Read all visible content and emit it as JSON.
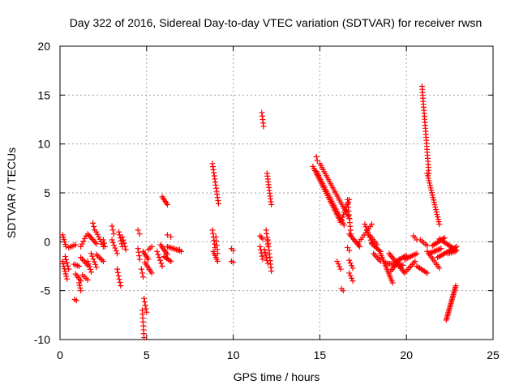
{
  "chart_data": {
    "type": "scatter",
    "title": "Day 322 of 2016, Sidereal Day-to-day VTEC variation (SDTVAR) for receiver rwsn",
    "xlabel": "GPS time / hours",
    "ylabel": "SDTVAR / TECUs",
    "xlim": [
      0,
      25
    ],
    "ylim": [
      -10,
      20
    ],
    "x_ticks": [
      0,
      5,
      10,
      15,
      20,
      25
    ],
    "x_tick_labels": [
      "0",
      "5",
      "10",
      "15",
      "20",
      "25"
    ],
    "y_ticks": [
      -10,
      -5,
      0,
      5,
      10,
      15,
      20
    ],
    "y_tick_labels": [
      "-10",
      "-5",
      "0",
      "5",
      "10",
      "15",
      "20"
    ],
    "grid": true,
    "marker": "plus",
    "color": "#ff0000",
    "segments": [
      {
        "x0": 0.15,
        "y0": 0.7,
        "x1": 0.35,
        "y1": -0.5,
        "n": 6
      },
      {
        "x0": 0.15,
        "y0": -2.0,
        "x1": 0.4,
        "y1": -3.8,
        "n": 8
      },
      {
        "x0": 0.3,
        "y0": -1.5,
        "x1": 0.5,
        "y1": -2.8,
        "n": 5
      },
      {
        "x0": 0.5,
        "y0": -0.6,
        "x1": 0.9,
        "y1": -0.3,
        "n": 5
      },
      {
        "x0": 0.8,
        "y0": -2.3,
        "x1": 1.1,
        "y1": -2.5,
        "n": 4
      },
      {
        "x0": 0.85,
        "y0": -5.9,
        "x1": 0.95,
        "y1": -6.0,
        "n": 2
      },
      {
        "x0": 0.9,
        "y0": -3.3,
        "x1": 1.2,
        "y1": -4.0,
        "n": 5
      },
      {
        "x0": 1.1,
        "y0": -4.2,
        "x1": 1.2,
        "y1": -5.0,
        "n": 4
      },
      {
        "x0": 1.2,
        "y0": -0.5,
        "x1": 1.5,
        "y1": 0.6,
        "n": 5
      },
      {
        "x0": 1.2,
        "y0": -1.6,
        "x1": 1.6,
        "y1": -2.4,
        "n": 6
      },
      {
        "x0": 1.3,
        "y0": -3.4,
        "x1": 1.6,
        "y1": -3.9,
        "n": 4
      },
      {
        "x0": 1.6,
        "y0": 0.8,
        "x1": 2.1,
        "y1": -0.2,
        "n": 8
      },
      {
        "x0": 1.6,
        "y0": -2.0,
        "x1": 1.8,
        "y1": -3.1,
        "n": 5
      },
      {
        "x0": 1.8,
        "y0": -1.2,
        "x1": 2.1,
        "y1": -2.6,
        "n": 6
      },
      {
        "x0": 1.9,
        "y0": 1.9,
        "x1": 2.0,
        "y1": 1.2,
        "n": 3
      },
      {
        "x0": 2.1,
        "y0": 1.0,
        "x1": 2.5,
        "y1": -0.5,
        "n": 7
      },
      {
        "x0": 2.1,
        "y0": -1.3,
        "x1": 2.5,
        "y1": -2.0,
        "n": 6
      },
      {
        "x0": 2.5,
        "y0": 0.2,
        "x1": 2.6,
        "y1": -0.5,
        "n": 3
      },
      {
        "x0": 3.0,
        "y0": 1.6,
        "x1": 3.1,
        "y1": 0.8,
        "n": 3
      },
      {
        "x0": 3.0,
        "y0": 0.2,
        "x1": 3.3,
        "y1": -1.2,
        "n": 6
      },
      {
        "x0": 3.3,
        "y0": -2.8,
        "x1": 3.5,
        "y1": -4.5,
        "n": 6
      },
      {
        "x0": 3.4,
        "y0": 1.0,
        "x1": 3.6,
        "y1": -0.5,
        "n": 6
      },
      {
        "x0": 3.6,
        "y0": 0.5,
        "x1": 3.8,
        "y1": -0.8,
        "n": 5
      },
      {
        "x0": 4.5,
        "y0": 1.2,
        "x1": 4.6,
        "y1": 0.8,
        "n": 2
      },
      {
        "x0": 4.5,
        "y0": -0.7,
        "x1": 4.6,
        "y1": -1.8,
        "n": 4
      },
      {
        "x0": 4.7,
        "y0": -2.8,
        "x1": 4.8,
        "y1": -3.6,
        "n": 3
      },
      {
        "x0": 4.75,
        "y0": -7.0,
        "x1": 4.85,
        "y1": -9.8,
        "n": 8
      },
      {
        "x0": 4.85,
        "y0": -5.8,
        "x1": 5.0,
        "y1": -7.2,
        "n": 5
      },
      {
        "x0": 4.8,
        "y0": -1.0,
        "x1": 5.1,
        "y1": -1.8,
        "n": 6
      },
      {
        "x0": 4.9,
        "y0": -2.1,
        "x1": 5.3,
        "y1": -3.2,
        "n": 7
      },
      {
        "x0": 5.1,
        "y0": -0.8,
        "x1": 5.3,
        "y1": -0.5,
        "n": 3
      },
      {
        "x0": 5.6,
        "y0": -1.0,
        "x1": 5.9,
        "y1": -2.5,
        "n": 6
      },
      {
        "x0": 5.9,
        "y0": 4.6,
        "x1": 6.2,
        "y1": 3.8,
        "n": 6
      },
      {
        "x0": 5.8,
        "y0": -0.3,
        "x1": 6.2,
        "y1": -1.3,
        "n": 7
      },
      {
        "x0": 6.0,
        "y0": -1.5,
        "x1": 6.4,
        "y1": -2.0,
        "n": 6
      },
      {
        "x0": 6.2,
        "y0": 0.7,
        "x1": 6.4,
        "y1": 0.5,
        "n": 2
      },
      {
        "x0": 6.2,
        "y0": -0.5,
        "x1": 6.9,
        "y1": -0.9,
        "n": 9
      },
      {
        "x0": 6.9,
        "y0": -0.8,
        "x1": 7.0,
        "y1": -1.0,
        "n": 2
      },
      {
        "x0": 8.8,
        "y0": 8.0,
        "x1": 9.15,
        "y1": 3.9,
        "n": 14
      },
      {
        "x0": 8.8,
        "y0": 1.2,
        "x1": 8.95,
        "y1": -0.6,
        "n": 6
      },
      {
        "x0": 8.85,
        "y0": -1.0,
        "x1": 9.1,
        "y1": -2.0,
        "n": 6
      },
      {
        "x0": 9.0,
        "y0": 0.5,
        "x1": 9.1,
        "y1": -1.2,
        "n": 5
      },
      {
        "x0": 9.9,
        "y0": -0.7,
        "x1": 10.0,
        "y1": -0.9,
        "n": 2
      },
      {
        "x0": 9.9,
        "y0": -2.0,
        "x1": 10.0,
        "y1": -2.1,
        "n": 2
      },
      {
        "x0": 11.55,
        "y0": 0.6,
        "x1": 11.7,
        "y1": 0.3,
        "n": 3
      },
      {
        "x0": 11.55,
        "y0": -0.5,
        "x1": 11.7,
        "y1": -1.8,
        "n": 5
      },
      {
        "x0": 11.65,
        "y0": 13.2,
        "x1": 11.75,
        "y1": 11.8,
        "n": 5
      },
      {
        "x0": 11.8,
        "y0": -0.8,
        "x1": 12.0,
        "y1": -2.2,
        "n": 6
      },
      {
        "x0": 11.9,
        "y0": 1.2,
        "x1": 12.0,
        "y1": -0.3,
        "n": 5
      },
      {
        "x0": 11.95,
        "y0": 7.0,
        "x1": 12.2,
        "y1": 3.8,
        "n": 12
      },
      {
        "x0": 12.0,
        "y0": 0.2,
        "x1": 12.2,
        "y1": -3.0,
        "n": 10
      },
      {
        "x0": 14.8,
        "y0": 8.7,
        "x1": 14.85,
        "y1": 8.3,
        "n": 2
      },
      {
        "x0": 14.6,
        "y0": 7.7,
        "x1": 16.2,
        "y1": 2.0,
        "n": 28
      },
      {
        "x0": 14.8,
        "y0": 7.2,
        "x1": 16.4,
        "y1": 1.7,
        "n": 28
      },
      {
        "x0": 15.0,
        "y0": 8.0,
        "x1": 16.7,
        "y1": 2.4,
        "n": 28
      },
      {
        "x0": 16.2,
        "y0": 2.0,
        "x1": 16.7,
        "y1": 4.3,
        "n": 10
      },
      {
        "x0": 16.6,
        "y0": 4.3,
        "x1": 16.8,
        "y1": 0.8,
        "n": 10
      },
      {
        "x0": 16.7,
        "y0": 0.8,
        "x1": 17.3,
        "y1": -0.5,
        "n": 10
      },
      {
        "x0": 16.0,
        "y0": -2.0,
        "x1": 16.2,
        "y1": -2.8,
        "n": 4
      },
      {
        "x0": 16.25,
        "y0": -4.8,
        "x1": 16.35,
        "y1": -5.0,
        "n": 2
      },
      {
        "x0": 16.6,
        "y0": -0.6,
        "x1": 16.7,
        "y1": -0.9,
        "n": 2
      },
      {
        "x0": 16.7,
        "y0": -3.2,
        "x1": 16.9,
        "y1": -4.0,
        "n": 4
      },
      {
        "x0": 16.7,
        "y0": -1.9,
        "x1": 16.9,
        "y1": -2.7,
        "n": 4
      },
      {
        "x0": 17.2,
        "y0": -0.2,
        "x1": 18.0,
        "y1": 1.8,
        "n": 10
      },
      {
        "x0": 17.6,
        "y0": 1.8,
        "x1": 18.0,
        "y1": -0.1,
        "n": 8
      },
      {
        "x0": 18.0,
        "y0": -0.2,
        "x1": 18.5,
        "y1": -1.0,
        "n": 8
      },
      {
        "x0": 17.9,
        "y0": 0.6,
        "x1": 18.3,
        "y1": -0.3,
        "n": 6
      },
      {
        "x0": 18.1,
        "y0": -1.2,
        "x1": 18.5,
        "y1": -2.0,
        "n": 6
      },
      {
        "x0": 18.5,
        "y0": -1.2,
        "x1": 19.2,
        "y1": -4.2,
        "n": 16
      },
      {
        "x0": 18.8,
        "y0": -2.2,
        "x1": 19.8,
        "y1": -2.4,
        "n": 14
      },
      {
        "x0": 19.0,
        "y0": -1.2,
        "x1": 19.9,
        "y1": -3.2,
        "n": 14
      },
      {
        "x0": 19.1,
        "y0": -3.0,
        "x1": 19.6,
        "y1": -1.8,
        "n": 8
      },
      {
        "x0": 19.4,
        "y0": -2.0,
        "x1": 20.0,
        "y1": -1.4,
        "n": 8
      },
      {
        "x0": 19.9,
        "y0": -1.8,
        "x1": 20.6,
        "y1": -1.2,
        "n": 9
      },
      {
        "x0": 20.0,
        "y0": -3.0,
        "x1": 20.5,
        "y1": -2.0,
        "n": 7
      },
      {
        "x0": 20.4,
        "y0": 0.6,
        "x1": 20.6,
        "y1": 0.2,
        "n": 3
      },
      {
        "x0": 20.6,
        "y0": -2.5,
        "x1": 21.2,
        "y1": -3.2,
        "n": 8
      },
      {
        "x0": 20.8,
        "y0": 0.2,
        "x1": 21.2,
        "y1": -0.4,
        "n": 5
      },
      {
        "x0": 20.9,
        "y0": 15.9,
        "x1": 21.3,
        "y1": 7.0,
        "n": 30
      },
      {
        "x0": 21.2,
        "y0": 7.0,
        "x1": 21.9,
        "y1": 1.8,
        "n": 22
      },
      {
        "x0": 21.2,
        "y0": -1.0,
        "x1": 21.9,
        "y1": -2.7,
        "n": 10
      },
      {
        "x0": 21.3,
        "y0": -1.2,
        "x1": 22.0,
        "y1": -0.7,
        "n": 10
      },
      {
        "x0": 21.5,
        "y0": -0.4,
        "x1": 22.2,
        "y1": 0.4,
        "n": 10
      },
      {
        "x0": 21.9,
        "y0": 0.3,
        "x1": 22.9,
        "y1": -0.9,
        "n": 14
      },
      {
        "x0": 21.8,
        "y0": -1.6,
        "x1": 22.9,
        "y1": -0.5,
        "n": 14
      },
      {
        "x0": 22.4,
        "y0": -1.2,
        "x1": 22.8,
        "y1": -1.0,
        "n": 5
      },
      {
        "x0": 22.3,
        "y0": -8.0,
        "x1": 22.85,
        "y1": -4.5,
        "n": 24
      }
    ]
  }
}
